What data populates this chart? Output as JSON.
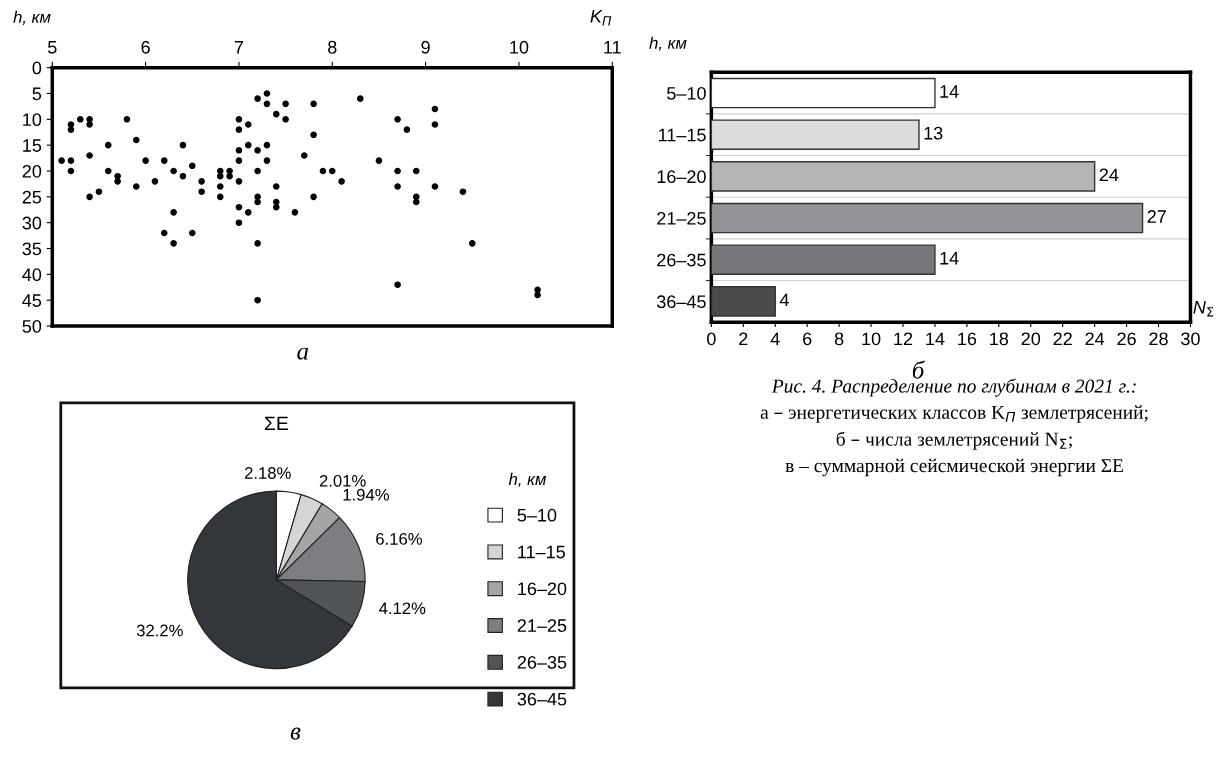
{
  "chart_data": [
    {
      "type": "scatter",
      "xlabel": "K$_{П}$",
      "ylabel": "h, км",
      "xlim": [
        5,
        11
      ],
      "xticks": [
        5,
        6,
        7,
        8,
        9,
        10,
        11
      ],
      "ylim": [
        50,
        0
      ],
      "yticks": [
        0,
        5,
        10,
        15,
        20,
        25,
        30,
        35,
        40,
        45,
        50
      ],
      "grid": false,
      "marker": "circle",
      "annotations": [
        "а"
      ],
      "series": [
        {
          "color": "#000000",
          "x": [
            5.1,
            5.2,
            5.2,
            5.2,
            5.2,
            5.3,
            5.4,
            5.4,
            5.4,
            5.4,
            5.5,
            5.6,
            5.6,
            5.7,
            5.7,
            5.8,
            5.9,
            5.9,
            6.0,
            6.1,
            6.2,
            6.2,
            6.3,
            6.3,
            6.3,
            6.4,
            6.4,
            6.5,
            6.5,
            6.6,
            6.6,
            6.8,
            6.8,
            6.8,
            6.8,
            6.9,
            6.9,
            7.0,
            7.0,
            7.0,
            7.0,
            7.0,
            7.0,
            7.0,
            7.1,
            7.1,
            7.1,
            7.2,
            7.2,
            7.2,
            7.2,
            7.2,
            7.2,
            7.2,
            7.3,
            7.3,
            7.3,
            7.3,
            7.4,
            7.4,
            7.4,
            7.4,
            7.5,
            7.5,
            7.6,
            7.7,
            7.8,
            7.8,
            7.8,
            7.9,
            8.0,
            8.1,
            8.3,
            8.5,
            8.7,
            8.7,
            8.7,
            8.7,
            8.8,
            8.9,
            8.9,
            8.9,
            9.1,
            9.1,
            9.1,
            9.4,
            9.5,
            10.2,
            10.2
          ],
          "values": [
            18,
            11,
            12,
            18,
            20,
            10,
            10,
            11,
            17,
            25,
            24,
            15,
            20,
            21,
            22,
            10,
            14,
            23,
            18,
            22,
            18,
            32,
            20,
            28,
            34,
            15,
            21,
            19,
            32,
            22,
            24,
            20,
            21,
            23,
            25,
            20,
            21,
            10,
            12,
            16,
            18,
            22,
            27,
            30,
            11,
            15,
            28,
            6,
            16,
            20,
            25,
            26,
            34,
            45,
            5,
            7,
            15,
            18,
            9,
            23,
            26,
            27,
            7,
            10,
            28,
            17,
            7,
            13,
            25,
            20,
            20,
            22,
            6,
            18,
            10,
            20,
            23,
            42,
            12,
            20,
            25,
            26,
            8,
            11,
            23,
            24,
            34,
            43,
            44
          ]
        }
      ]
    },
    {
      "type": "bar",
      "orientation": "horizontal",
      "ylabel": "h, км",
      "xlabel": "N$_{Σ}$",
      "categories": [
        "5–10",
        "11–15",
        "16–20",
        "21–25",
        "26–35",
        "36–45"
      ],
      "values": [
        14,
        13,
        24,
        27,
        14,
        4
      ],
      "colors": [
        "#ffffff",
        "#dcdddf",
        "#b5b6b8",
        "#939497",
        "#76777a",
        "#4a4b4d"
      ],
      "xlim": [
        0,
        30
      ],
      "xticks": [
        0,
        2,
        4,
        6,
        8,
        10,
        12,
        14,
        16,
        18,
        20,
        22,
        24,
        26,
        28,
        30
      ],
      "grid": "y",
      "data_labels": true,
      "annotations": [
        "б"
      ]
    },
    {
      "type": "pie",
      "title": "ΣE",
      "legend_title": "h, км",
      "legend": "right",
      "categories": [
        "5–10",
        "11–15",
        "16–20",
        "21–25",
        "26–35",
        "36–45"
      ],
      "values": [
        2.18,
        2.01,
        1.94,
        6.16,
        4.12,
        32.2
      ],
      "value_labels": [
        "2.18%",
        "2.01%",
        "1.94%",
        "6.16%",
        "4.12%",
        "32.2%"
      ],
      "colors": [
        "#ffffff",
        "#d4d5d5",
        "#a3a5a7",
        "#7c7e81",
        "#515456",
        "#33363a"
      ],
      "annotations": [
        "в"
      ]
    },
    {
      "type": "other",
      "annotations": [
        "Рис. 4. Распределение по глубинам в 2021 г.:",
        "а – энергетических классов K$_{П}$ землетрясений;",
        "б – числа землетрясений N$_{Σ}$;",
        "в – суммарной сейсмической энергии ΣE"
      ]
    }
  ]
}
